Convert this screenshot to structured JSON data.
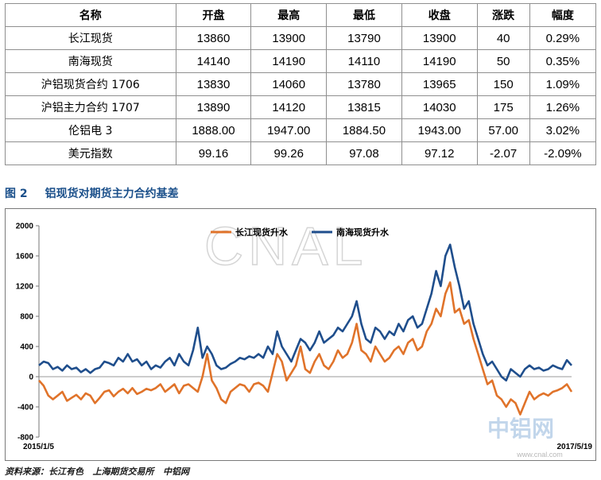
{
  "table": {
    "headers": [
      "名称",
      "开盘",
      "最高",
      "最低",
      "收盘",
      "涨跌",
      "幅度"
    ],
    "rows": [
      [
        "长江现货",
        "13860",
        "13900",
        "13790",
        "13900",
        "40",
        "0.29%"
      ],
      [
        "南海现货",
        "14140",
        "14190",
        "14110",
        "14190",
        "50",
        "0.35%"
      ],
      [
        "沪铝现货合约 1706",
        "13830",
        "14060",
        "13780",
        "13965",
        "150",
        "1.09%"
      ],
      [
        "沪铝主力合约 1707",
        "13890",
        "14120",
        "13815",
        "14030",
        "175",
        "1.26%"
      ],
      [
        "伦铝电 3",
        "1888.00",
        "1947.00",
        "1884.50",
        "1943.00",
        "57.00",
        "3.02%"
      ],
      [
        "美元指数",
        "99.16",
        "99.26",
        "97.08",
        "97.12",
        "-2.07",
        "-2.09%"
      ]
    ]
  },
  "figure": {
    "number": "图 2",
    "title": "铝现货对期货主力合约基差"
  },
  "chart_data": {
    "type": "line",
    "x_start_label": "2015/1/5",
    "x_end_label": "2017/5/19",
    "ylim": [
      -800,
      2000
    ],
    "yticks": [
      "2000",
      "1600",
      "1200",
      "800",
      "400",
      "0",
      "-400",
      "-800"
    ],
    "series": [
      {
        "name": "长江现货升水",
        "color": "#e0732a",
        "values": [
          -50,
          -120,
          -250,
          -300,
          -250,
          -200,
          -320,
          -280,
          -240,
          -300,
          -220,
          -250,
          -350,
          -280,
          -200,
          -180,
          -260,
          -200,
          -160,
          -220,
          -150,
          -230,
          -200,
          -160,
          -180,
          -150,
          -100,
          -200,
          -150,
          -100,
          -220,
          -120,
          -100,
          -150,
          -200,
          0,
          300,
          -50,
          -150,
          -300,
          -350,
          -200,
          -150,
          -100,
          -120,
          -200,
          -100,
          -80,
          -120,
          -200,
          50,
          300,
          200,
          -50,
          50,
          150,
          400,
          100,
          50,
          200,
          300,
          150,
          100,
          200,
          350,
          250,
          300,
          450,
          700,
          350,
          300,
          200,
          400,
          300,
          200,
          250,
          350,
          400,
          300,
          450,
          500,
          350,
          400,
          600,
          700,
          900,
          800,
          1100,
          1250,
          850,
          900,
          700,
          750,
          500,
          300,
          100,
          -100,
          -50,
          -250,
          -300,
          -400,
          -300,
          -350,
          -500,
          -350,
          -200,
          -300,
          -250,
          -220,
          -250,
          -200,
          -180,
          -150,
          -100,
          -200
        ]
      },
      {
        "name": "南海现货升水",
        "color": "#1f4e8c",
        "values": [
          150,
          200,
          180,
          100,
          130,
          80,
          150,
          100,
          120,
          60,
          100,
          50,
          100,
          120,
          200,
          180,
          150,
          250,
          200,
          300,
          200,
          230,
          150,
          200,
          100,
          150,
          120,
          200,
          250,
          150,
          300,
          200,
          150,
          350,
          650,
          250,
          400,
          300,
          150,
          100,
          120,
          170,
          200,
          250,
          230,
          270,
          250,
          300,
          250,
          400,
          300,
          600,
          400,
          300,
          200,
          350,
          500,
          450,
          350,
          450,
          600,
          450,
          500,
          550,
          650,
          600,
          700,
          800,
          1000,
          700,
          500,
          450,
          650,
          600,
          500,
          600,
          550,
          700,
          600,
          750,
          800,
          650,
          700,
          900,
          1100,
          1400,
          1200,
          1600,
          1750,
          1450,
          1200,
          900,
          1000,
          700,
          500,
          300,
          150,
          200,
          100,
          0,
          -50,
          100,
          50,
          0,
          100,
          150,
          100,
          120,
          80,
          100,
          150,
          120,
          100,
          220,
          150
        ]
      }
    ],
    "legend": "top-center",
    "grid": false
  },
  "watermark": {
    "text": "CNAL",
    "logo_text": "中铝网",
    "logo_url": "www.cnal.com"
  },
  "source": "资料来源：长江有色   上海期货交易所   中铝网"
}
